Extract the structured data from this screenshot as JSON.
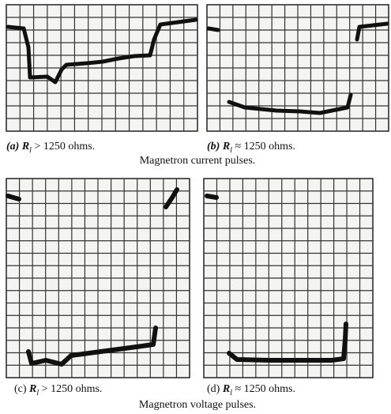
{
  "panels": [
    {
      "label": "(a)",
      "variable": "R",
      "subscript": "l",
      "condition": "> 1250 ohms."
    },
    {
      "label": "(b)",
      "variable": "R",
      "subscript": "l",
      "condition": "≈ 1250 ohms."
    },
    {
      "label": "(c)",
      "variable": "R",
      "subscript": "l",
      "condition": "> 1250 ohms."
    },
    {
      "label": "(d)",
      "variable": "R",
      "subscript": "l",
      "condition": "≈ 1250 ohms."
    }
  ],
  "group_captions": [
    "Magnetron current pulses.",
    "Magnetron voltage pulses."
  ]
}
